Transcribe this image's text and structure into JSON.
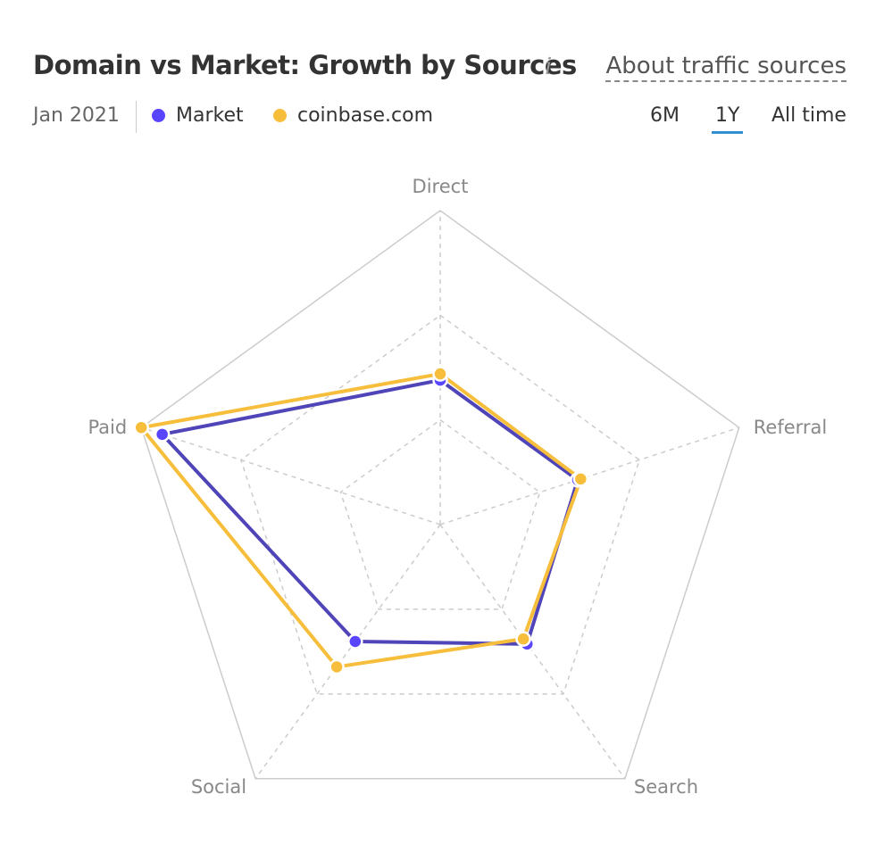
{
  "header": {
    "title": "Domain vs Market: Growth by Sources",
    "info_icon": "info-icon",
    "about_link": "About traffic sources"
  },
  "subheader": {
    "date": "Jan 2021",
    "periods": {
      "six_months": "6M",
      "one_year": "1Y",
      "all_time": "All time"
    },
    "active_period": "1Y"
  },
  "colors": {
    "market": "#4f45b8",
    "market_dot": "#5a45ff",
    "domain": "#f7be3c",
    "grid": "#cccccc",
    "active_tab": "#2f8fd0"
  },
  "chart_data": {
    "type": "radar",
    "title": "Domain vs Market: Growth by Sources",
    "axes": [
      "Direct",
      "Referral",
      "Search",
      "Social",
      "Paid"
    ],
    "range": [
      0,
      1
    ],
    "levels": 3,
    "grid": true,
    "legend": "top-left",
    "series": [
      {
        "name": "Market",
        "values": [
          0.46,
          0.46,
          0.47,
          0.46,
          0.93
        ]
      },
      {
        "name": "coinbase.com",
        "values": [
          0.48,
          0.47,
          0.45,
          0.56,
          1.0
        ]
      }
    ]
  }
}
